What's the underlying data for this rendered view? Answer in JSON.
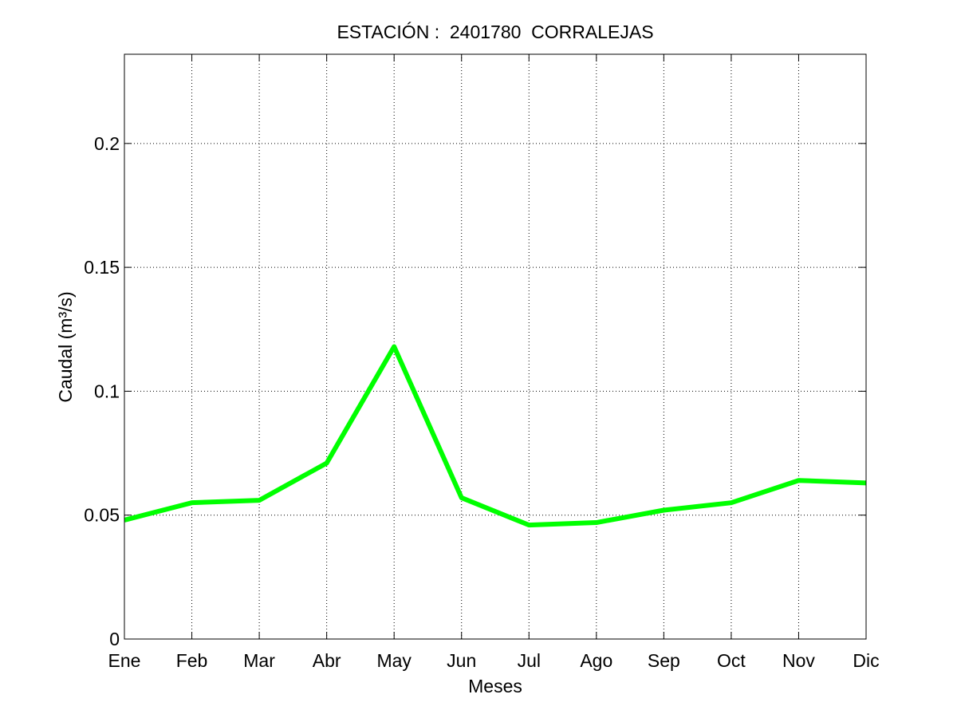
{
  "chart_data": {
    "type": "line",
    "title": "ESTACIÓN :  2401780  CORRALEJAS",
    "xlabel": "Meses",
    "ylabel": "Caudal (m³/s)",
    "categories": [
      "Ene",
      "Feb",
      "Mar",
      "Abr",
      "May",
      "Jun",
      "Jul",
      "Ago",
      "Sep",
      "Oct",
      "Nov",
      "Dic"
    ],
    "ylim": [
      0,
      0.236
    ],
    "yticks": [
      0,
      0.05,
      0.1,
      0.15,
      0.2
    ],
    "ytick_labels": [
      "0",
      "0.05",
      "0.1",
      "0.15",
      "0.2"
    ],
    "grid": true,
    "series": [
      {
        "values": [
          0.048,
          0.055,
          0.056,
          0.071,
          0.118,
          0.057,
          0.046,
          0.047,
          0.052,
          0.055,
          0.064,
          0.063
        ],
        "color": "#00ff00"
      }
    ]
  }
}
